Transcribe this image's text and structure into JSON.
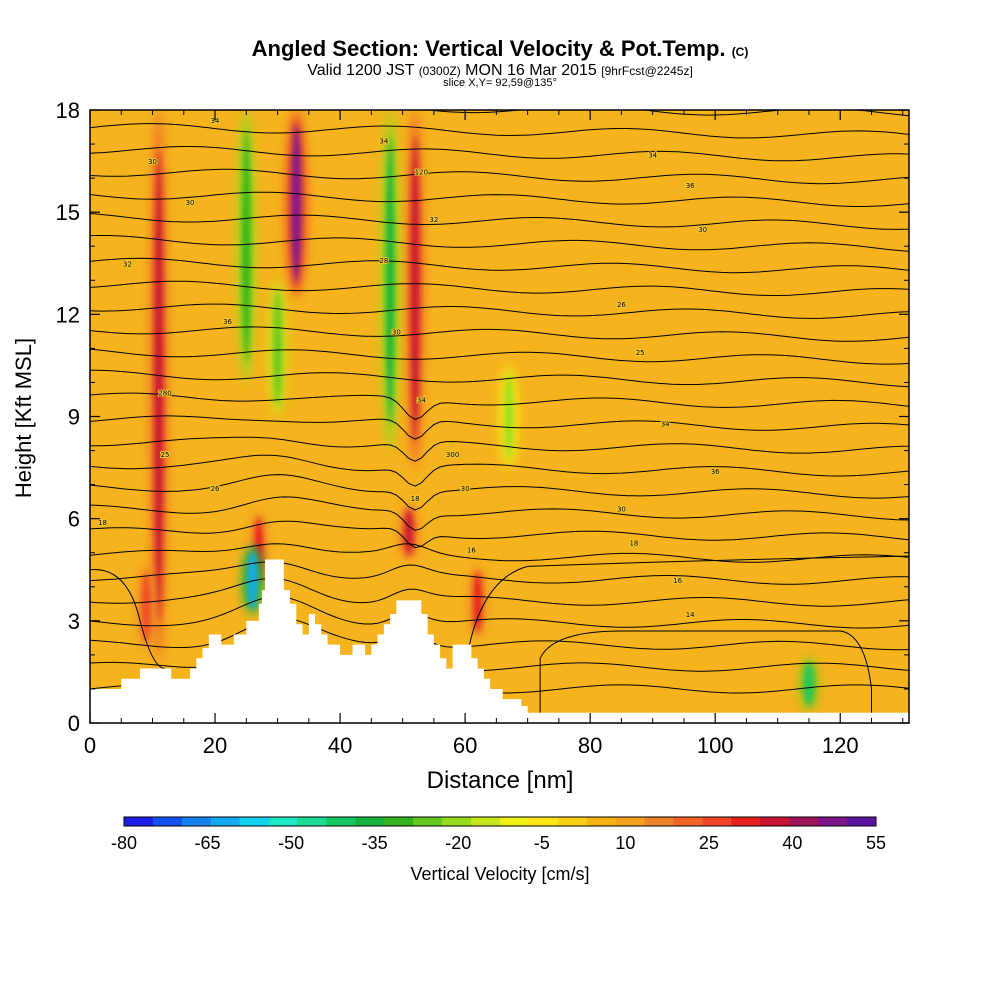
{
  "header": {
    "title": "Angled Section: Vertical Velocity & Pot.Temp.",
    "title_tag": "(C)",
    "valid_prefix": "Valid 1200 JST",
    "valid_utc": "(0300Z)",
    "valid_date": "MON 16 Mar 2015",
    "forecast": "[9hrFcst@2245z]",
    "slice": "slice X,Y= 92,59@135°"
  },
  "chart_data": {
    "type": "heatmap",
    "title": "Angled Section: Vertical Velocity & Pot.Temp.",
    "xlabel": "Distance [nm]",
    "ylabel": "Height [Kft MSL]",
    "xlim": [
      0,
      131
    ],
    "ylim": [
      0,
      18
    ],
    "x_ticks": [
      0,
      20,
      40,
      60,
      80,
      100,
      120
    ],
    "y_ticks": [
      0,
      3,
      6,
      9,
      12,
      15,
      18
    ],
    "colorbar": {
      "label": "Vertical Velocity [cm/s]",
      "tick_labels": [
        -80,
        -65,
        -50,
        -35,
        -20,
        -5,
        10,
        25,
        40,
        55
      ],
      "colors": [
        "#1a1ee6",
        "#1450f0",
        "#1482f0",
        "#14aaf0",
        "#14d2f0",
        "#1ee6c8",
        "#1edc96",
        "#14c864",
        "#14b43c",
        "#32b41e",
        "#64c81e",
        "#96dc1e",
        "#c8e61e",
        "#f0f014",
        "#fae614",
        "#fad214",
        "#f5b414",
        "#f5a01e",
        "#f08228",
        "#f06428",
        "#f04628",
        "#e61e1e",
        "#c81432",
        "#a0145a",
        "#80148c",
        "#5a14a0"
      ]
    },
    "updraft_columns": [
      {
        "x": 11,
        "z_bottom": 1.8,
        "z_top": 18,
        "w": 35
      },
      {
        "x": 33,
        "z_bottom": 12.5,
        "z_top": 18,
        "w": 45
      },
      {
        "x": 52,
        "z_bottom": 7.5,
        "z_top": 18,
        "w": 35
      },
      {
        "x": 51,
        "z_bottom": 4.8,
        "z_top": 6.4,
        "w": 35
      },
      {
        "x": 62,
        "z_bottom": 2.5,
        "z_top": 4.6,
        "w": 30
      },
      {
        "x": 27,
        "z_bottom": 4.0,
        "z_top": 6.2,
        "w": 30
      },
      {
        "x": 9,
        "z_bottom": 2.2,
        "z_top": 4.6,
        "w": 25
      }
    ],
    "downdraft_columns": [
      {
        "x": 25,
        "z_bottom": 10,
        "z_top": 18,
        "w": -30
      },
      {
        "x": 30,
        "z_bottom": 9,
        "z_top": 13,
        "w": -25
      },
      {
        "x": 48,
        "z_bottom": 8,
        "z_top": 18,
        "w": -35
      },
      {
        "x": 67,
        "z_bottom": 7.5,
        "z_top": 10.5,
        "w": -20
      },
      {
        "x": 26,
        "z_bottom": 3.2,
        "z_top": 5.2,
        "w": -60
      },
      {
        "x": 115,
        "z_bottom": 0.4,
        "z_top": 1.9,
        "w": -40
      }
    ],
    "theta_contour_levels": [
      2,
      4,
      6,
      8,
      10,
      12,
      14,
      16,
      18,
      20,
      22,
      24,
      26,
      28,
      30,
      32,
      34,
      36,
      38,
      40,
      42,
      44,
      46,
      48,
      50,
      52,
      54
    ],
    "contour_labels": [
      {
        "x": 2,
        "z": 5.9,
        "text": "18"
      },
      {
        "x": 12,
        "z": 7.9,
        "text": "25"
      },
      {
        "x": 20,
        "z": 6.9,
        "text": "26"
      },
      {
        "x": 12,
        "z": 9.7,
        "text": "280"
      },
      {
        "x": 6,
        "z": 13.5,
        "text": "32"
      },
      {
        "x": 10,
        "z": 16.5,
        "text": "30"
      },
      {
        "x": 16,
        "z": 15.3,
        "text": "30"
      },
      {
        "x": 22,
        "z": 11.8,
        "text": "36"
      },
      {
        "x": 20,
        "z": 17.7,
        "text": "34"
      },
      {
        "x": 47,
        "z": 13.6,
        "text": "28"
      },
      {
        "x": 47,
        "z": 17.1,
        "text": "34"
      },
      {
        "x": 49,
        "z": 11.5,
        "text": "30"
      },
      {
        "x": 53,
        "z": 16.2,
        "text": "120"
      },
      {
        "x": 55,
        "z": 14.8,
        "text": "32"
      },
      {
        "x": 53,
        "z": 9.5,
        "text": "34"
      },
      {
        "x": 58,
        "z": 7.9,
        "text": "300"
      },
      {
        "x": 60,
        "z": 6.9,
        "text": "30"
      },
      {
        "x": 52,
        "z": 6.6,
        "text": "18"
      },
      {
        "x": 61,
        "z": 5.1,
        "text": "16"
      },
      {
        "x": 85,
        "z": 12.3,
        "text": "26"
      },
      {
        "x": 88,
        "z": 10.9,
        "text": "25"
      },
      {
        "x": 92,
        "z": 8.8,
        "text": "34"
      },
      {
        "x": 90,
        "z": 16.7,
        "text": "34"
      },
      {
        "x": 96,
        "z": 15.8,
        "text": "36"
      },
      {
        "x": 98,
        "z": 14.5,
        "text": "30"
      },
      {
        "x": 100,
        "z": 7.4,
        "text": "36"
      },
      {
        "x": 85,
        "z": 6.3,
        "text": "30"
      },
      {
        "x": 87,
        "z": 5.3,
        "text": "18"
      },
      {
        "x": 94,
        "z": 4.2,
        "text": "16"
      },
      {
        "x": 96,
        "z": 3.2,
        "text": "14"
      }
    ],
    "terrain": [
      {
        "x": 0,
        "z": 1.0
      },
      {
        "x": 5,
        "z": 1.0
      },
      {
        "x": 5,
        "z": 1.3
      },
      {
        "x": 8,
        "z": 1.3
      },
      {
        "x": 8,
        "z": 1.6
      },
      {
        "x": 13,
        "z": 1.6
      },
      {
        "x": 13,
        "z": 1.3
      },
      {
        "x": 16,
        "z": 1.3
      },
      {
        "x": 16,
        "z": 1.6
      },
      {
        "x": 17,
        "z": 1.6
      },
      {
        "x": 17,
        "z": 1.9
      },
      {
        "x": 18,
        "z": 1.9
      },
      {
        "x": 18,
        "z": 2.2
      },
      {
        "x": 19,
        "z": 2.2
      },
      {
        "x": 19,
        "z": 2.6
      },
      {
        "x": 21,
        "z": 2.6
      },
      {
        "x": 21,
        "z": 2.3
      },
      {
        "x": 23,
        "z": 2.3
      },
      {
        "x": 23,
        "z": 2.6
      },
      {
        "x": 25,
        "z": 2.6
      },
      {
        "x": 25,
        "z": 3.0
      },
      {
        "x": 27,
        "z": 3.0
      },
      {
        "x": 27,
        "z": 3.5
      },
      {
        "x": 27.5,
        "z": 3.5
      },
      {
        "x": 27.5,
        "z": 3.9
      },
      {
        "x": 28,
        "z": 3.9
      },
      {
        "x": 28,
        "z": 4.8
      },
      {
        "x": 31,
        "z": 4.8
      },
      {
        "x": 31,
        "z": 3.9
      },
      {
        "x": 32,
        "z": 3.9
      },
      {
        "x": 32,
        "z": 3.5
      },
      {
        "x": 33,
        "z": 3.5
      },
      {
        "x": 33,
        "z": 2.9
      },
      {
        "x": 34,
        "z": 2.9
      },
      {
        "x": 34,
        "z": 2.6
      },
      {
        "x": 35,
        "z": 2.6
      },
      {
        "x": 35,
        "z": 3.2
      },
      {
        "x": 36,
        "z": 3.2
      },
      {
        "x": 36,
        "z": 2.9
      },
      {
        "x": 37,
        "z": 2.9
      },
      {
        "x": 37,
        "z": 2.6
      },
      {
        "x": 38,
        "z": 2.6
      },
      {
        "x": 38,
        "z": 2.3
      },
      {
        "x": 40,
        "z": 2.3
      },
      {
        "x": 40,
        "z": 2.0
      },
      {
        "x": 42,
        "z": 2.0
      },
      {
        "x": 42,
        "z": 2.3
      },
      {
        "x": 44,
        "z": 2.3
      },
      {
        "x": 44,
        "z": 2.0
      },
      {
        "x": 45,
        "z": 2.0
      },
      {
        "x": 45,
        "z": 2.3
      },
      {
        "x": 46,
        "z": 2.3
      },
      {
        "x": 46,
        "z": 2.6
      },
      {
        "x": 47,
        "z": 2.6
      },
      {
        "x": 47,
        "z": 2.9
      },
      {
        "x": 48,
        "z": 2.9
      },
      {
        "x": 48,
        "z": 3.2
      },
      {
        "x": 49,
        "z": 3.2
      },
      {
        "x": 49,
        "z": 3.6
      },
      {
        "x": 53,
        "z": 3.6
      },
      {
        "x": 53,
        "z": 3.2
      },
      {
        "x": 54,
        "z": 3.2
      },
      {
        "x": 54,
        "z": 2.6
      },
      {
        "x": 55,
        "z": 2.6
      },
      {
        "x": 55,
        "z": 2.3
      },
      {
        "x": 56,
        "z": 2.3
      },
      {
        "x": 56,
        "z": 1.9
      },
      {
        "x": 57,
        "z": 1.9
      },
      {
        "x": 57,
        "z": 1.6
      },
      {
        "x": 58,
        "z": 1.6
      },
      {
        "x": 58,
        "z": 2.3
      },
      {
        "x": 61,
        "z": 2.3
      },
      {
        "x": 61,
        "z": 1.9
      },
      {
        "x": 62,
        "z": 1.9
      },
      {
        "x": 62,
        "z": 1.6
      },
      {
        "x": 63,
        "z": 1.6
      },
      {
        "x": 63,
        "z": 1.3
      },
      {
        "x": 64,
        "z": 1.3
      },
      {
        "x": 64,
        "z": 1.0
      },
      {
        "x": 66,
        "z": 1.0
      },
      {
        "x": 66,
        "z": 0.7
      },
      {
        "x": 69,
        "z": 0.7
      },
      {
        "x": 69,
        "z": 0.5
      },
      {
        "x": 70,
        "z": 0.5
      },
      {
        "x": 70,
        "z": 0.3
      },
      {
        "x": 131,
        "z": 0.3
      }
    ]
  }
}
